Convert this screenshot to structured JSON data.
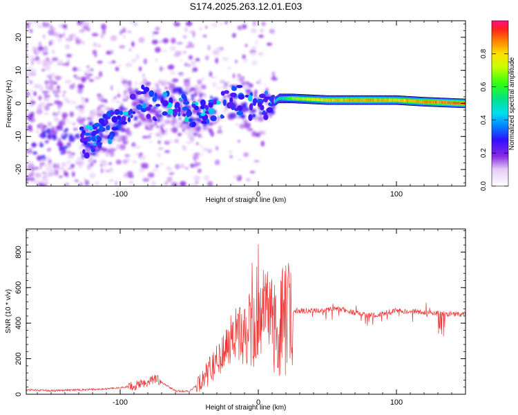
{
  "chart_data": [
    {
      "type": "heatmap",
      "title": "S174.2025.263.12.01.E03",
      "xlabel": "Height of straight line (km)",
      "ylabel": "Frequency (Hz)",
      "xlim": [
        -168,
        150
      ],
      "ylim": [
        -25,
        25
      ],
      "x_ticks": [
        -100,
        0,
        100
      ],
      "y_ticks": [
        -20,
        -10,
        0,
        10,
        20
      ],
      "colorbar": {
        "label": "Normalized spectral amplitude",
        "range": [
          0.0,
          1.0
        ],
        "ticks": [
          0.0,
          0.2,
          0.4,
          0.6,
          0.8
        ]
      },
      "ridge": {
        "x": [
          -125,
          -110,
          -95,
          -85,
          -75,
          -60,
          -45,
          -30,
          -15,
          0,
          5,
          10,
          15,
          25,
          50,
          80,
          100,
          120,
          150
        ],
        "freq": [
          -12,
          -8,
          -4,
          2,
          -2,
          0,
          -3,
          -1,
          1,
          -2,
          -1,
          0,
          1.5,
          1.5,
          1,
          1,
          1,
          0.5,
          0
        ],
        "amplitude": [
          0.2,
          0.3,
          0.3,
          0.3,
          0.25,
          0.3,
          0.3,
          0.3,
          0.35,
          0.4,
          0.45,
          0.5,
          0.5,
          0.7,
          0.85,
          0.9,
          0.85,
          0.9,
          0.95
        ]
      }
    },
    {
      "type": "line",
      "xlabel": "Height of straight line (km)",
      "ylabel": "SNR (10 * v/v)",
      "xlim": [
        -168,
        150
      ],
      "ylim": [
        0,
        930
      ],
      "x_ticks": [
        -100,
        0,
        100
      ],
      "y_ticks": [
        0,
        200,
        400,
        600,
        800
      ],
      "series": [
        {
          "name": "SNR",
          "color": "#ee3333",
          "x": [
            -168,
            -150,
            -130,
            -110,
            -90,
            -80,
            -75,
            -60,
            -50,
            -40,
            -30,
            -20,
            -10,
            0,
            3,
            10,
            20,
            25,
            40,
            60,
            80,
            100,
            120,
            140,
            150
          ],
          "values": [
            25,
            20,
            25,
            30,
            45,
            70,
            90,
            20,
            15,
            80,
            200,
            310,
            350,
            380,
            500,
            370,
            420,
            470,
            470,
            480,
            440,
            470,
            460,
            450,
            450
          ]
        }
      ]
    }
  ]
}
